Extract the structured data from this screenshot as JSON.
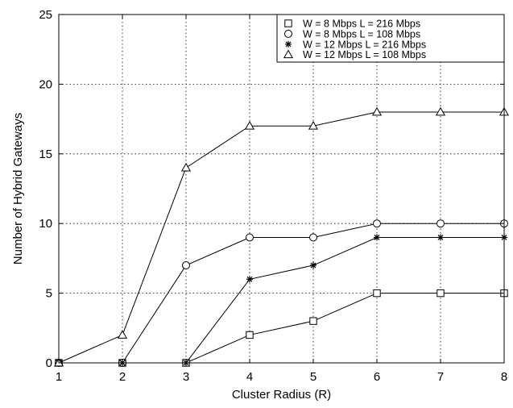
{
  "chart_data": {
    "type": "line",
    "title": "",
    "xlabel": "Cluster Radius (R)",
    "ylabel": "Number of Hybrid Gateways",
    "x": [
      1,
      2,
      3,
      4,
      5,
      6,
      7,
      8
    ],
    "xlim": [
      1,
      8
    ],
    "ylim": [
      0,
      25
    ],
    "xticks": [
      "1",
      "2",
      "3",
      "4",
      "5",
      "6",
      "7",
      "8"
    ],
    "yticks": [
      "0",
      "5",
      "10",
      "15",
      "20",
      "25"
    ],
    "grid": true,
    "legend_position": "top-right",
    "series": [
      {
        "name": "W = 8 Mbps L = 216 Mbps",
        "marker": "square",
        "values": [
          0,
          0,
          0,
          2,
          3,
          5,
          5,
          5
        ]
      },
      {
        "name": "W = 8 Mbps L = 108 Mbps",
        "marker": "circle",
        "values": [
          0,
          0,
          7,
          9,
          9,
          10,
          10,
          10
        ]
      },
      {
        "name": "W = 12 Mbps L = 216 Mbps",
        "marker": "star",
        "values": [
          0,
          0,
          0,
          6,
          7,
          9,
          9,
          9
        ]
      },
      {
        "name": "W = 12 Mbps L = 108 Mbps",
        "marker": "triangle",
        "values": [
          0,
          2,
          14,
          17,
          17,
          18,
          18,
          18
        ]
      }
    ]
  }
}
